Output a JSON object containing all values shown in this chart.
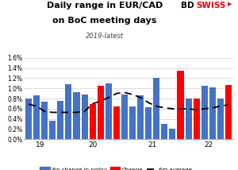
{
  "title_line1": "Daily range in EUR/CAD",
  "title_line2": "on BoC meeting days",
  "subtitle": "2019-latest",
  "bar_values": [
    0.008,
    0.0087,
    0.0074,
    0.0036,
    0.0075,
    0.0109,
    0.0092,
    0.0088,
    0.007,
    0.0105,
    0.011,
    0.0065,
    0.0088,
    0.0065,
    0.0086,
    0.0063,
    0.012,
    0.003,
    0.0021,
    0.0135,
    0.008,
    0.008,
    0.0105,
    0.0102,
    0.008,
    0.0107
  ],
  "bar_colors": [
    "blue",
    "blue",
    "blue",
    "blue",
    "blue",
    "blue",
    "blue",
    "blue",
    "red",
    "red",
    "blue",
    "red",
    "blue",
    "blue",
    "blue",
    "blue",
    "blue",
    "blue",
    "blue",
    "red",
    "blue",
    "red",
    "blue",
    "blue",
    "blue",
    "red"
  ],
  "dashed_line": [
    0.0069,
    0.0065,
    0.0055,
    0.0053,
    0.0053,
    0.0053,
    0.0053,
    0.0055,
    0.007,
    0.0075,
    0.0082,
    0.009,
    0.0092,
    0.0088,
    0.0082,
    0.0072,
    0.0065,
    0.0062,
    0.006,
    0.006,
    0.006,
    0.0058,
    0.006,
    0.0062,
    0.0065,
    0.0068
  ],
  "ylim": [
    0,
    0.016
  ],
  "ytick_vals": [
    0.0,
    0.002,
    0.004,
    0.006,
    0.008,
    0.01,
    0.012,
    0.014,
    0.016
  ],
  "ytick_labels": [
    "0.0%",
    "0.2%",
    "0.4%",
    "0.6%",
    "0.8%",
    "1.0%",
    "1.2%",
    "1.4%",
    "1.6%"
  ],
  "bar_color_blue": "#4472C4",
  "bar_color_red": "#FF0000",
  "line_color": "#000000",
  "legend_labels": [
    "No change in policy",
    "Change",
    "6m average"
  ],
  "bdswiss_black": "#000000",
  "bdswiss_color": "#E8000D",
  "background_color": "#FFFFFF",
  "x_tick_positions": [
    1.5,
    8.0,
    15.5,
    22.5
  ],
  "x_tick_labels": [
    "19",
    "20",
    "21",
    "22"
  ]
}
